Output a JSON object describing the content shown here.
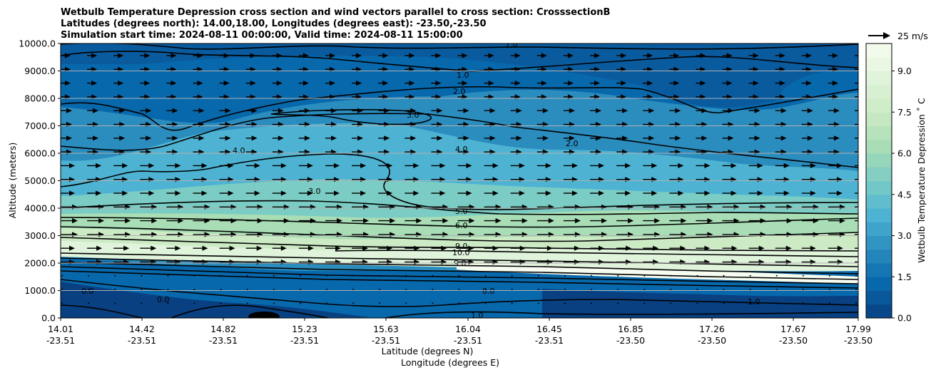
{
  "chart_data": {
    "type": "contour",
    "title_lines": [
      "Wetbulb Temperature Depression cross section and wind vectors parallel to cross section: CrosssectionB",
      "Latitudes (degrees north): 14.00,18.00, Longitudes (degrees east): -23.50,-23.50",
      "Simulation start time: 2024-08-11 00:00:00, Valid time: 2024-08-11 15:00:00"
    ],
    "xlabel_lines": [
      "Latitude (degrees N)",
      "Longitude (degrees E)"
    ],
    "ylabel": "Altitude (meters)",
    "x_ticks": [
      {
        "lat": "14.01",
        "lon": "-23.51"
      },
      {
        "lat": "14.42",
        "lon": "-23.51"
      },
      {
        "lat": "14.82",
        "lon": "-23.51"
      },
      {
        "lat": "15.23",
        "lon": "-23.51"
      },
      {
        "lat": "15.63",
        "lon": "-23.51"
      },
      {
        "lat": "16.04",
        "lon": "-23.51"
      },
      {
        "lat": "16.45",
        "lon": "-23.51"
      },
      {
        "lat": "16.85",
        "lon": "-23.50"
      },
      {
        "lat": "17.26",
        "lon": "-23.50"
      },
      {
        "lat": "17.67",
        "lon": "-23.50"
      },
      {
        "lat": "17.99",
        "lon": "-23.50"
      }
    ],
    "y_ticks": [
      "0.0",
      "1000.0",
      "2000.0",
      "3000.0",
      "4000.0",
      "5000.0",
      "6000.0",
      "7000.0",
      "8000.0",
      "9000.0",
      "10000.0"
    ],
    "ylim": [
      0,
      10000
    ],
    "grid": "horizontal",
    "colorbar": {
      "label": "Wetbulb Temperature Depression ˚ C",
      "ticks": [
        "0.0",
        "1.5",
        "3.0",
        "4.5",
        "6.0",
        "7.5",
        "9.0"
      ],
      "range": [
        0,
        10
      ],
      "colormap": "GnBu_r",
      "colors": [
        "#084081",
        "#0868ac",
        "#2b8cbe",
        "#4eb3d3",
        "#7bccc4",
        "#a8ddb5",
        "#ccebc5",
        "#e0f3db",
        "#f7fcf0"
      ]
    },
    "quiver_key": {
      "label": "25 m/s"
    },
    "contour_labels": [
      "0.0",
      "1.0",
      "2.0",
      "3.0",
      "4.0",
      "5.0",
      "6.0",
      "9.0",
      "10.0"
    ]
  }
}
